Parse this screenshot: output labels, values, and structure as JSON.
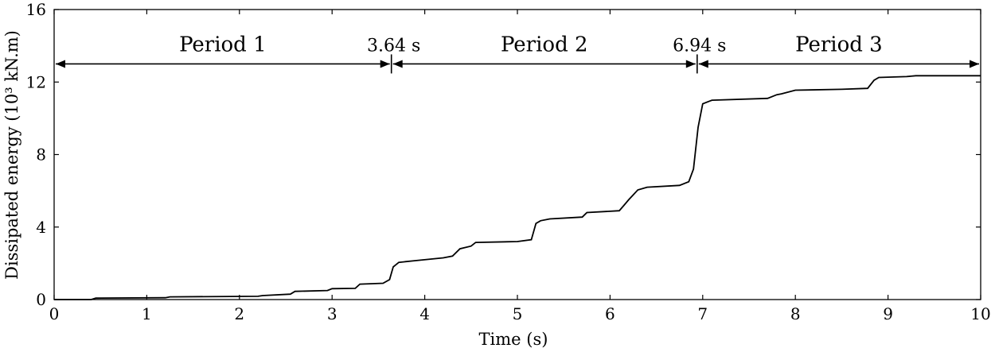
{
  "chart_data": {
    "type": "line",
    "xlabel": "Time (s)",
    "ylabel": "Dissipated energy (10³ kN.m)",
    "xlim": [
      0,
      10
    ],
    "ylim": [
      0,
      16
    ],
    "xticks": [
      "0",
      "1",
      "2",
      "3",
      "4",
      "5",
      "6",
      "7",
      "8",
      "9",
      "10"
    ],
    "yticks": [
      "0",
      "4",
      "8",
      "12",
      "16"
    ],
    "grid": false,
    "series": [
      {
        "x": [
          0,
          0.4,
          0.45,
          1.2,
          1.25,
          2.2,
          2.25,
          2.55,
          2.6,
          2.95,
          3.0,
          3.25,
          3.3,
          3.55,
          3.62,
          3.66,
          3.72,
          3.9,
          4.2,
          4.3,
          4.38,
          4.5,
          4.55,
          5.0,
          5.15,
          5.2,
          5.25,
          5.35,
          5.7,
          5.75,
          6.1,
          6.15,
          6.2,
          6.3,
          6.4,
          6.75,
          6.85,
          6.9,
          6.95,
          7.0,
          7.1,
          7.7,
          7.8,
          7.85,
          8.0,
          8.5,
          8.78,
          8.85,
          8.9,
          9.2,
          9.3,
          10.0
        ],
        "y": [
          0.0,
          0.0,
          0.08,
          0.1,
          0.15,
          0.18,
          0.22,
          0.3,
          0.45,
          0.5,
          0.6,
          0.62,
          0.85,
          0.9,
          1.1,
          1.8,
          2.05,
          2.15,
          2.3,
          2.4,
          2.8,
          2.95,
          3.15,
          3.2,
          3.3,
          4.2,
          4.35,
          4.45,
          4.55,
          4.8,
          4.9,
          5.2,
          5.5,
          6.05,
          6.2,
          6.3,
          6.5,
          7.2,
          9.5,
          10.8,
          11.0,
          11.1,
          11.3,
          11.35,
          11.55,
          11.6,
          11.65,
          12.1,
          12.25,
          12.3,
          12.35,
          12.35
        ]
      }
    ],
    "annotations": {
      "arrow_y": 13,
      "markers": [
        {
          "x": 3.64,
          "label": "3.64 s"
        },
        {
          "x": 6.94,
          "label": "6.94 s"
        }
      ],
      "periods": [
        {
          "label": "Period 1",
          "x_start": 0,
          "x_end": 3.64
        },
        {
          "label": "Period 2",
          "x_start": 3.64,
          "x_end": 6.94
        },
        {
          "label": "Period 3",
          "x_start": 6.94,
          "x_end": 10
        }
      ]
    }
  }
}
